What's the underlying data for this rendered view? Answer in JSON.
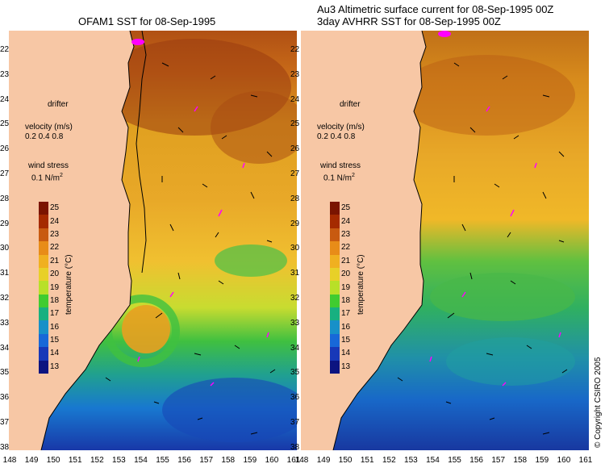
{
  "left_panel": {
    "title": "OFAM1 SST for 08-Sep-1995",
    "legend": {
      "drifter": "drifter",
      "velocity_label": "velocity (m/s)",
      "velocity_values": "0.2 0.4 0.8",
      "wind_label": "wind stress",
      "wind_value": "0.1 N/m",
      "wind_exp": "2"
    }
  },
  "right_panel": {
    "title_line1": "Au3 Altimetric surface current for 08-Sep-1995 00Z",
    "title_line2": "3day AVHRR SST for 08-Sep-1995 00Z",
    "legend": {
      "drifter": "drifter",
      "velocity_label": "velocity (m/s)",
      "velocity_values": "0.2 0.4 0.8",
      "wind_label": "wind stress",
      "wind_value": "0.1 N/m",
      "wind_exp": "2"
    }
  },
  "latitudes": [
    "22",
    "23",
    "24",
    "25",
    "26",
    "27",
    "28",
    "29",
    "30",
    "31",
    "32",
    "33",
    "34",
    "35",
    "36",
    "37",
    "38"
  ],
  "longitudes": [
    "148",
    "149",
    "150",
    "151",
    "152",
    "153",
    "154",
    "155",
    "156",
    "157",
    "158",
    "159",
    "160",
    "161"
  ],
  "colorbar": {
    "ticks": [
      "25",
      "24",
      "23",
      "22",
      "21",
      "20",
      "19",
      "18",
      "17",
      "16",
      "15",
      "14",
      "13"
    ],
    "label": "temperature (°C)",
    "colors": [
      "#7a1400",
      "#a52a00",
      "#c85a10",
      "#e88c18",
      "#f0b020",
      "#e8d028",
      "#b8e028",
      "#40cc30",
      "#18b080",
      "#1890c8",
      "#1868d8",
      "#1838b8",
      "#0c1480"
    ]
  },
  "copyright": "© Copyright CSIRO 2005",
  "colors": {
    "land": "#f7c7a5",
    "arrow": "#000000",
    "drifter": "#ff00ff"
  }
}
